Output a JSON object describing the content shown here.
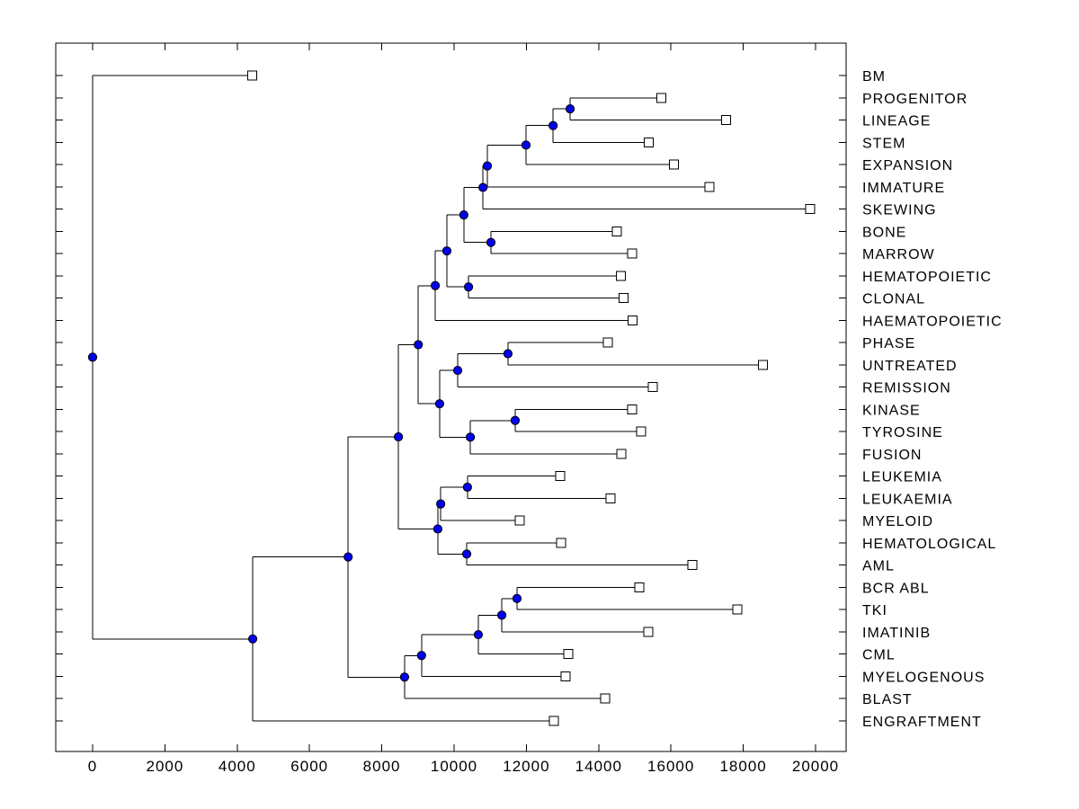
{
  "figure": {
    "title": "",
    "background": "#ffffff",
    "description": "Phylogenetic-style dendrogram, root at left, leaf labels at right"
  },
  "chart_data": {
    "type": "dendrogram",
    "orientation": "left_to_right",
    "title": "",
    "xlabel": "",
    "ylabel": "",
    "grid": false,
    "legend": "none",
    "xlim": [
      -1000,
      20800
    ],
    "x_axis": {
      "ticks": [
        {
          "value": 0,
          "label": "0"
        },
        {
          "value": 2000,
          "label": "2000"
        },
        {
          "value": 4000,
          "label": "4000"
        },
        {
          "value": 6000,
          "label": "6000"
        },
        {
          "value": 8000,
          "label": "8000"
        },
        {
          "value": 10000,
          "label": "10000"
        },
        {
          "value": 12000,
          "label": "12000"
        },
        {
          "value": 14000,
          "label": "14000"
        },
        {
          "value": 16000,
          "label": "16000"
        },
        {
          "value": 18000,
          "label": "18000"
        },
        {
          "value": 20000,
          "label": "20000"
        }
      ]
    },
    "leaves": [
      {
        "label": "BM",
        "distance": 4420
      },
      {
        "label": "PROGENITOR",
        "distance": 15730
      },
      {
        "label": "LINEAGE",
        "distance": 17530
      },
      {
        "label": "STEM",
        "distance": 15390
      },
      {
        "label": "EXPANSION",
        "distance": 16080
      },
      {
        "label": "IMMATURE",
        "distance": 17060
      },
      {
        "label": "SKEWING",
        "distance": 19850
      },
      {
        "label": "BONE",
        "distance": 14500
      },
      {
        "label": "MARROW",
        "distance": 14930
      },
      {
        "label": "HEMATOPOIETIC",
        "distance": 14620
      },
      {
        "label": "CLONAL",
        "distance": 14690
      },
      {
        "label": "HAEMATOPOIETIC",
        "distance": 14940
      },
      {
        "label": "PHASE",
        "distance": 14250
      },
      {
        "label": "UNTREATED",
        "distance": 18540
      },
      {
        "label": "REMISSION",
        "distance": 15500
      },
      {
        "label": "KINASE",
        "distance": 14930
      },
      {
        "label": "TYROSINE",
        "distance": 15170
      },
      {
        "label": "FUSION",
        "distance": 14630
      },
      {
        "label": "LEUKEMIA",
        "distance": 12940
      },
      {
        "label": "LEUKAEMIA",
        "distance": 14330
      },
      {
        "label": "MYELOID",
        "distance": 11820
      },
      {
        "label": "HEMATOLOGICAL",
        "distance": 12960
      },
      {
        "label": "AML",
        "distance": 16590
      },
      {
        "label": "BCR ABL",
        "distance": 15120
      },
      {
        "label": "TKI",
        "distance": 17840
      },
      {
        "label": "IMATINIB",
        "distance": 15370
      },
      {
        "label": "CML",
        "distance": 13160
      },
      {
        "label": "MYELOGENOUS",
        "distance": 13080
      },
      {
        "label": "BLAST",
        "distance": 14180
      },
      {
        "label": "ENGRAFTMENT",
        "distance": 12760
      }
    ],
    "nodes": [
      {
        "id": "n01",
        "children": [
          "PROGENITOR",
          "LINEAGE"
        ],
        "distance": 13210
      },
      {
        "id": "n02",
        "children": [
          "n01",
          "STEM"
        ],
        "distance": 12740
      },
      {
        "id": "n03",
        "children": [
          "n02",
          "EXPANSION"
        ],
        "distance": 11990
      },
      {
        "id": "n04",
        "children": [
          "n03",
          "IMMATURE"
        ],
        "distance": 10920
      },
      {
        "id": "n05",
        "children": [
          "n04",
          "SKEWING"
        ],
        "distance": 10800
      },
      {
        "id": "n06",
        "children": [
          "BONE",
          "MARROW"
        ],
        "distance": 11020
      },
      {
        "id": "n07",
        "children": [
          "n05",
          "n06"
        ],
        "distance": 10270
      },
      {
        "id": "n08",
        "children": [
          "HEMATOPOIETIC",
          "CLONAL"
        ],
        "distance": 10400
      },
      {
        "id": "n09",
        "children": [
          "n07",
          "n08"
        ],
        "distance": 9800
      },
      {
        "id": "n10",
        "children": [
          "n09",
          "HAEMATOPOIETIC"
        ],
        "distance": 9480
      },
      {
        "id": "n11",
        "children": [
          "PHASE",
          "UNTREATED"
        ],
        "distance": 11490
      },
      {
        "id": "n12",
        "children": [
          "n11",
          "REMISSION"
        ],
        "distance": 10100
      },
      {
        "id": "n13",
        "children": [
          "KINASE",
          "TYROSINE"
        ],
        "distance": 11690
      },
      {
        "id": "n14",
        "children": [
          "n13",
          "FUSION"
        ],
        "distance": 10450
      },
      {
        "id": "n15",
        "children": [
          "n12",
          "n14"
        ],
        "distance": 9600
      },
      {
        "id": "n16",
        "children": [
          "n10",
          "n15"
        ],
        "distance": 9010
      },
      {
        "id": "n17",
        "children": [
          "LEUKEMIA",
          "LEUKAEMIA"
        ],
        "distance": 10370
      },
      {
        "id": "n18",
        "children": [
          "n17",
          "MYELOID"
        ],
        "distance": 9630
      },
      {
        "id": "n19",
        "children": [
          "HEMATOLOGICAL",
          "AML"
        ],
        "distance": 10350
      },
      {
        "id": "n20",
        "children": [
          "n18",
          "n19"
        ],
        "distance": 9550
      },
      {
        "id": "n21",
        "children": [
          "n16",
          "n20"
        ],
        "distance": 8460
      },
      {
        "id": "n22",
        "children": [
          "BCR ABL",
          "TKI"
        ],
        "distance": 11740
      },
      {
        "id": "n23",
        "children": [
          "n22",
          "IMATINIB"
        ],
        "distance": 11320
      },
      {
        "id": "n24",
        "children": [
          "n23",
          "CML"
        ],
        "distance": 10670
      },
      {
        "id": "n25",
        "children": [
          "n24",
          "MYELOGENOUS"
        ],
        "distance": 9100
      },
      {
        "id": "n26",
        "children": [
          "n25",
          "BLAST"
        ],
        "distance": 8630
      },
      {
        "id": "n27",
        "children": [
          "n21",
          "n26"
        ],
        "distance": 7070
      },
      {
        "id": "n28",
        "children": [
          "n27",
          "ENGRAFTMENT"
        ],
        "distance": 4430
      },
      {
        "id": "root",
        "children": [
          "BM",
          "n28"
        ],
        "distance": 0
      }
    ],
    "style": {
      "branch_color": "#000000",
      "branch_node_marker": "filled-circle",
      "branch_node_fill": "#0000EE",
      "branch_node_edge": "#000000",
      "leaf_marker": "open-square",
      "leaf_marker_fill": "#FFFFFF",
      "leaf_marker_edge": "#000000",
      "axis_color": "#000000",
      "text_color": "#000000"
    }
  }
}
